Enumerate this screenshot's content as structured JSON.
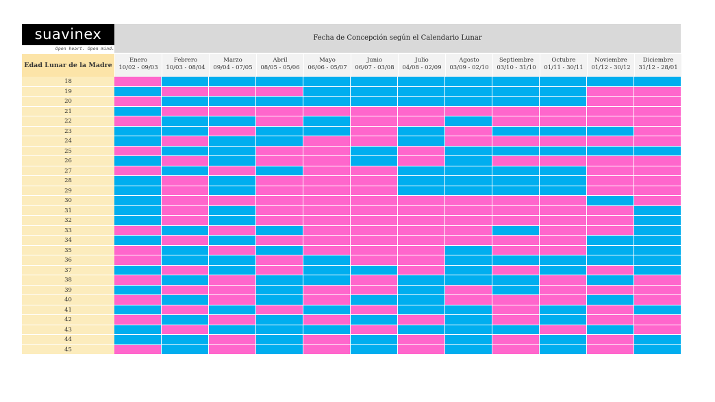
{
  "brand": {
    "name": "suavinex",
    "tagline": "Open heart. Open mind."
  },
  "chart_data": {
    "type": "heatmap",
    "title": "Fecha de Concepción según el Calendario Lunar",
    "row_header": "Edad Lunar de la Madre",
    "colors": {
      "pink": "#ff66cc",
      "blue": "#00aeef"
    },
    "months": [
      {
        "name": "Enero",
        "range": "10/02 - 09/03"
      },
      {
        "name": "Febrero",
        "range": "10/03 - 08/04"
      },
      {
        "name": "Marzo",
        "range": "09/04 - 07/05"
      },
      {
        "name": "Abril",
        "range": "08/05 - 05/06"
      },
      {
        "name": "Mayo",
        "range": "06/06 - 05/07"
      },
      {
        "name": "Junio",
        "range": "06/07 - 03/08"
      },
      {
        "name": "Julio",
        "range": "04/08 - 02/09"
      },
      {
        "name": "Agosto",
        "range": "03/09 - 02/10"
      },
      {
        "name": "Septiembre",
        "range": "03/10 - 31/10"
      },
      {
        "name": "Octubre",
        "range": "01/11 - 30/11"
      },
      {
        "name": "Noviembre",
        "range": "01/12 - 30/12"
      },
      {
        "name": "Diciembre",
        "range": "31/12 - 28/01"
      }
    ],
    "ages": [
      "18",
      "19",
      "20",
      "21",
      "22",
      "23",
      "24",
      "25",
      "26",
      "27",
      "28",
      "29",
      "30",
      "31",
      "32",
      "33",
      "34",
      "35",
      "36",
      "37",
      "38",
      "39",
      "40",
      "41",
      "42",
      "43",
      "44",
      "45"
    ],
    "grid": [
      [
        "P",
        "B",
        "B",
        "B",
        "B",
        "B",
        "B",
        "B",
        "B",
        "B",
        "B",
        "B"
      ],
      [
        "B",
        "P",
        "P",
        "P",
        "B",
        "B",
        "B",
        "B",
        "B",
        "B",
        "P",
        "P"
      ],
      [
        "P",
        "B",
        "B",
        "B",
        "B",
        "B",
        "B",
        "B",
        "B",
        "B",
        "P",
        "P"
      ],
      [
        "B",
        "P",
        "P",
        "P",
        "P",
        "P",
        "P",
        "P",
        "P",
        "P",
        "P",
        "P"
      ],
      [
        "P",
        "B",
        "B",
        "P",
        "B",
        "P",
        "P",
        "B",
        "P",
        "P",
        "P",
        "P"
      ],
      [
        "B",
        "B",
        "P",
        "B",
        "B",
        "P",
        "B",
        "P",
        "B",
        "B",
        "B",
        "P"
      ],
      [
        "B",
        "P",
        "B",
        "B",
        "P",
        "P",
        "B",
        "P",
        "P",
        "P",
        "P",
        "P"
      ],
      [
        "P",
        "B",
        "B",
        "P",
        "P",
        "B",
        "P",
        "B",
        "B",
        "B",
        "B",
        "B"
      ],
      [
        "B",
        "P",
        "B",
        "P",
        "P",
        "B",
        "P",
        "B",
        "P",
        "P",
        "P",
        "P"
      ],
      [
        "P",
        "B",
        "P",
        "B",
        "P",
        "P",
        "B",
        "B",
        "B",
        "B",
        "P",
        "P"
      ],
      [
        "B",
        "P",
        "B",
        "P",
        "P",
        "P",
        "B",
        "B",
        "B",
        "B",
        "P",
        "P"
      ],
      [
        "B",
        "P",
        "B",
        "P",
        "P",
        "P",
        "B",
        "B",
        "B",
        "B",
        "P",
        "P"
      ],
      [
        "B",
        "P",
        "P",
        "P",
        "P",
        "P",
        "P",
        "P",
        "P",
        "P",
        "B",
        "P"
      ],
      [
        "B",
        "P",
        "B",
        "P",
        "P",
        "P",
        "P",
        "P",
        "P",
        "P",
        "P",
        "B"
      ],
      [
        "B",
        "P",
        "B",
        "P",
        "P",
        "P",
        "P",
        "P",
        "P",
        "P",
        "P",
        "B"
      ],
      [
        "P",
        "B",
        "P",
        "B",
        "P",
        "P",
        "P",
        "P",
        "B",
        "P",
        "P",
        "B"
      ],
      [
        "B",
        "P",
        "B",
        "P",
        "P",
        "P",
        "P",
        "P",
        "P",
        "P",
        "B",
        "B"
      ],
      [
        "P",
        "B",
        "P",
        "B",
        "P",
        "P",
        "P",
        "B",
        "P",
        "P",
        "B",
        "B"
      ],
      [
        "P",
        "B",
        "B",
        "P",
        "B",
        "P",
        "P",
        "B",
        "B",
        "B",
        "B",
        "B"
      ],
      [
        "B",
        "P",
        "B",
        "P",
        "B",
        "B",
        "P",
        "B",
        "P",
        "B",
        "P",
        "B"
      ],
      [
        "P",
        "B",
        "P",
        "B",
        "B",
        "P",
        "B",
        "B",
        "B",
        "P",
        "B",
        "P"
      ],
      [
        "B",
        "P",
        "P",
        "B",
        "P",
        "P",
        "B",
        "P",
        "B",
        "P",
        "P",
        "P"
      ],
      [
        "P",
        "B",
        "P",
        "B",
        "P",
        "B",
        "B",
        "P",
        "P",
        "P",
        "B",
        "P"
      ],
      [
        "B",
        "P",
        "B",
        "P",
        "B",
        "P",
        "B",
        "B",
        "P",
        "B",
        "P",
        "B"
      ],
      [
        "P",
        "B",
        "P",
        "B",
        "P",
        "B",
        "P",
        "B",
        "P",
        "B",
        "P",
        "P"
      ],
      [
        "B",
        "P",
        "B",
        "B",
        "B",
        "P",
        "B",
        "B",
        "B",
        "P",
        "B",
        "P"
      ],
      [
        "B",
        "B",
        "P",
        "B",
        "P",
        "B",
        "P",
        "B",
        "P",
        "B",
        "P",
        "B"
      ],
      [
        "P",
        "B",
        "P",
        "B",
        "P",
        "B",
        "P",
        "B",
        "P",
        "B",
        "P",
        "B"
      ]
    ]
  }
}
